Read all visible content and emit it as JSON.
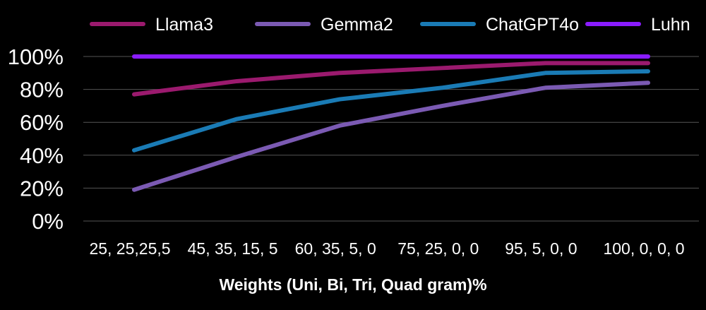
{
  "chart_data": {
    "type": "line",
    "title": "",
    "xlabel": "Weights (Uni, Bi, Tri, Quad gram)%",
    "ylabel": "",
    "categories": [
      "25, 25,25,5",
      "45, 35, 15, 5",
      "60, 35, 5, 0",
      "75, 25, 0, 0",
      "95, 5, 0, 0",
      "100, 0, 0, 0"
    ],
    "ylim": [
      0,
      100
    ],
    "yticks": [
      0,
      20,
      40,
      60,
      80,
      100
    ],
    "ytick_labels": [
      "0%",
      "20%",
      "40%",
      "60%",
      "80%",
      "100%"
    ],
    "grid": true,
    "legend_position": "top",
    "series": [
      {
        "name": "Llama3",
        "color": "#9b1a6e",
        "values": [
          77,
          85,
          90,
          93,
          96,
          96
        ]
      },
      {
        "name": "Gemma2",
        "color": "#7b5ab3",
        "values": [
          19,
          39,
          58,
          70,
          81,
          84
        ]
      },
      {
        "name": "ChatGPT4o",
        "color": "#1a7bb5",
        "values": [
          43,
          62,
          74,
          81,
          90,
          91
        ]
      },
      {
        "name": "Luhn",
        "color": "#8a1cff",
        "values": [
          100,
          100,
          100,
          100,
          100,
          100
        ]
      }
    ]
  }
}
